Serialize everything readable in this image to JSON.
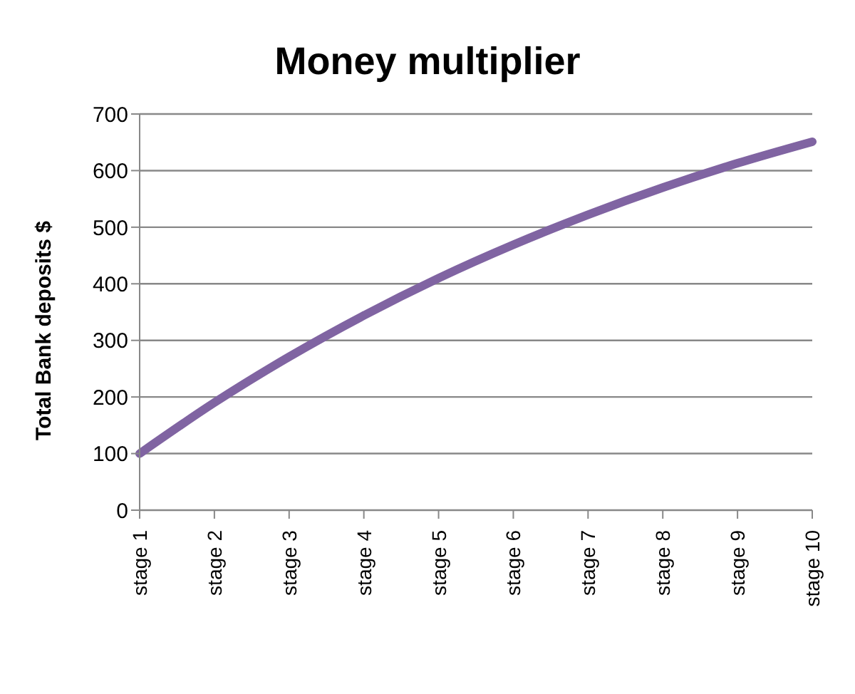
{
  "chart_data": {
    "type": "line",
    "title": "Money multiplier",
    "ylabel": "Total Bank deposits $",
    "categories": [
      "stage 1",
      "stage 2",
      "stage 3",
      "stage 4",
      "stage 5",
      "stage 6",
      "stage 7",
      "stage 8",
      "stage 9",
      "stage 10"
    ],
    "series": [
      {
        "color": "#8064a2",
        "values": [
          100,
          190,
          271,
          344,
          410,
          469,
          522,
          570,
          613,
          651
        ]
      }
    ],
    "ylim": [
      0,
      700
    ],
    "yticks": [
      0,
      100,
      200,
      300,
      400,
      500,
      600,
      700
    ],
    "grid": "y",
    "marker": "none",
    "line_style": "solid",
    "legend": false
  }
}
